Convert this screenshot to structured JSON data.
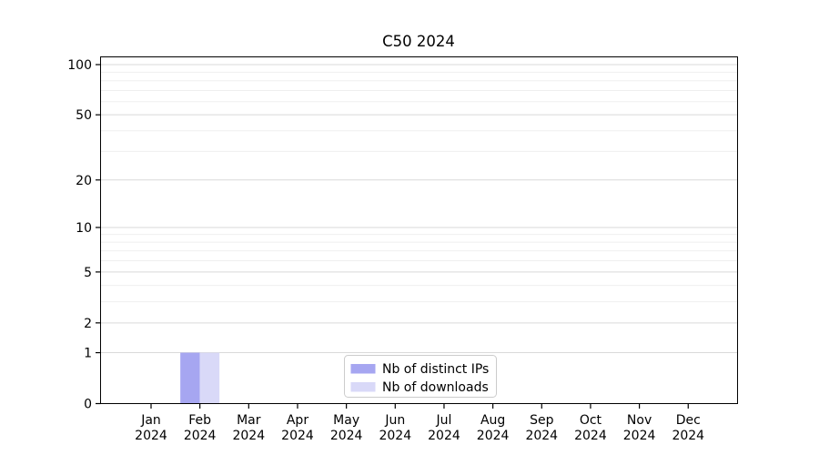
{
  "chart_data": {
    "type": "bar",
    "title": "C50 2024",
    "categories": [
      "Jan",
      "Feb",
      "Mar",
      "Apr",
      "May",
      "Jun",
      "Jul",
      "Aug",
      "Sep",
      "Oct",
      "Nov",
      "Dec"
    ],
    "year_label": "2024",
    "series": [
      {
        "name": "Nb of distinct IPs",
        "color": "#a6a6f1",
        "values": [
          0,
          1,
          0,
          0,
          0,
          0,
          0,
          0,
          0,
          0,
          0,
          0
        ]
      },
      {
        "name": "Nb of downloads",
        "color": "#d9d9f8",
        "values": [
          0,
          1,
          0,
          0,
          0,
          0,
          0,
          0,
          0,
          0,
          0,
          0
        ]
      }
    ],
    "y_scale": "log1p",
    "y_ticks": [
      0,
      1,
      2,
      5,
      10,
      20,
      50,
      100
    ],
    "y_minor_gridlines": [
      3,
      4,
      6,
      7,
      8,
      9,
      30,
      40,
      60,
      70,
      80,
      90
    ],
    "ylim": [
      0,
      112
    ],
    "xlabel": "",
    "ylabel": "",
    "grid": "horizontal",
    "legend_position": "lower-center"
  },
  "colors": {
    "bar_distinct_ips": "#a6a6f1",
    "bar_downloads": "#d9d9f8",
    "grid_major": "#d9d9d9",
    "grid_minor": "#efefef",
    "axis": "#000000",
    "legend_border": "#cccccc",
    "background": "#ffffff"
  }
}
